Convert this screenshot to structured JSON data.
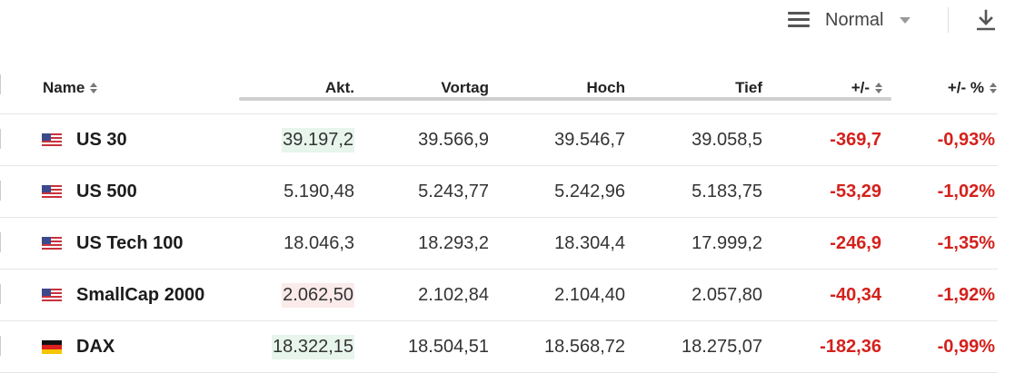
{
  "toolbar": {
    "view_mode": "Normal",
    "icons": {
      "menu": "hamburger-icon",
      "dropdown": "caret-down-icon",
      "download": "download-icon"
    }
  },
  "table": {
    "columns": [
      "Name",
      "Akt.",
      "Vortag",
      "Hoch",
      "Tief",
      "+/-",
      "+/- %"
    ],
    "rows": [
      {
        "flag": "us",
        "name": "US 30",
        "akt": "39.197,2",
        "akt_flash": "up",
        "vortag": "39.566,9",
        "hoch": "39.546,7",
        "tief": "39.058,5",
        "change": "-369,7",
        "change_pct": "-0,93%"
      },
      {
        "flag": "us",
        "name": "US 500",
        "akt": "5.190,48",
        "akt_flash": "none",
        "vortag": "5.243,77",
        "hoch": "5.242,96",
        "tief": "5.183,75",
        "change": "-53,29",
        "change_pct": "-1,02%"
      },
      {
        "flag": "us",
        "name": "US Tech 100",
        "akt": "18.046,3",
        "akt_flash": "none",
        "vortag": "18.293,2",
        "hoch": "18.304,4",
        "tief": "17.999,2",
        "change": "-246,9",
        "change_pct": "-1,35%"
      },
      {
        "flag": "us",
        "name": "SmallCap 2000",
        "akt": "2.062,50",
        "akt_flash": "down",
        "vortag": "2.102,84",
        "hoch": "2.104,40",
        "tief": "2.057,80",
        "change": "-40,34",
        "change_pct": "-1,92%"
      },
      {
        "flag": "de",
        "name": "DAX",
        "akt": "18.322,15",
        "akt_flash": "up",
        "vortag": "18.504,51",
        "hoch": "18.568,72",
        "tief": "18.275,07",
        "change": "-182,36",
        "change_pct": "-0,99%"
      }
    ]
  },
  "colors": {
    "negative": "#d4211c",
    "flash_up_bg": "#e7f5ec",
    "flash_down_bg": "#fbeaea",
    "border": "#e6e6e6"
  }
}
